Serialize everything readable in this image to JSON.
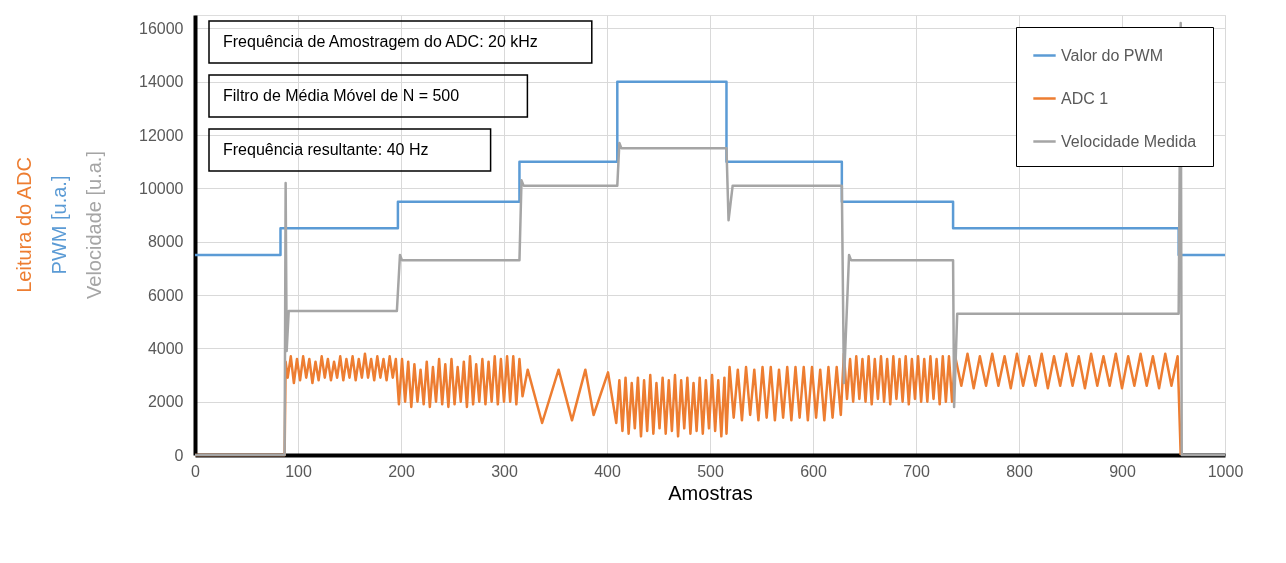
{
  "chart_data": {
    "type": "line",
    "xlabel": "Amostras",
    "ylabel": [
      "Leitura do ADC",
      "PWM [u.a.]",
      "Velocidade [u.a.]"
    ],
    "annotations": [
      "Frequência de Amostragem do ADC: 20 kHz",
      "Filtro de Média Móvel de N = 500",
      "Frequência resultante: 40 Hz"
    ],
    "xlim": [
      0,
      1000
    ],
    "xticks": [
      0,
      100,
      200,
      300,
      400,
      500,
      600,
      700,
      800,
      900,
      1000
    ],
    "ylim": [
      0,
      16500
    ],
    "yticks": [
      0,
      2000,
      4000,
      6000,
      8000,
      10000,
      12000,
      14000,
      16000
    ],
    "grid": true,
    "legend": "top right",
    "line_style": "solid",
    "marker": "none",
    "series": [
      {
        "name": "Valor do PWM",
        "color": "#5b9bd5",
        "x": [
          0,
          83,
          83,
          197,
          197,
          315,
          315,
          410,
          410,
          516,
          516,
          628,
          628,
          736,
          736,
          955,
          955,
          1000
        ],
        "values": [
          7500,
          7500,
          8500,
          8500,
          9500,
          9500,
          11000,
          11000,
          14000,
          14000,
          11000,
          11000,
          9500,
          9500,
          8500,
          8500,
          7500,
          7500
        ]
      },
      {
        "name": "ADC 1",
        "color": "#ed7d31",
        "x": [
          0,
          87,
          88,
          90,
          93,
          96,
          99,
          102,
          105,
          108,
          111,
          114,
          117,
          120,
          123,
          126,
          129,
          132,
          135,
          138,
          141,
          144,
          147,
          150,
          153,
          156,
          159,
          162,
          165,
          168,
          171,
          174,
          177,
          180,
          183,
          186,
          189,
          192,
          195,
          198,
          201,
          204,
          207,
          210,
          213,
          216,
          219,
          222,
          225,
          228,
          231,
          234,
          237,
          240,
          243,
          246,
          249,
          252,
          255,
          258,
          261,
          264,
          267,
          270,
          273,
          276,
          279,
          282,
          285,
          288,
          291,
          294,
          297,
          300,
          303,
          306,
          309,
          312,
          315,
          318,
          323,
          337,
          353,
          366,
          379,
          387,
          401,
          409,
          412,
          415,
          418,
          421,
          424,
          427,
          430,
          433,
          436,
          439,
          442,
          445,
          448,
          451,
          454,
          457,
          460,
          463,
          466,
          469,
          472,
          475,
          478,
          481,
          484,
          487,
          490,
          493,
          496,
          499,
          502,
          505,
          508,
          511,
          514,
          516,
          519,
          523,
          527,
          531,
          535,
          539,
          543,
          547,
          551,
          555,
          559,
          563,
          567,
          571,
          575,
          579,
          583,
          587,
          591,
          595,
          599,
          603,
          607,
          611,
          615,
          619,
          623,
          627,
          630,
          633,
          636,
          639,
          642,
          645,
          648,
          651,
          654,
          657,
          660,
          663,
          666,
          669,
          672,
          675,
          678,
          681,
          684,
          687,
          690,
          693,
          696,
          699,
          702,
          705,
          708,
          711,
          714,
          717,
          720,
          723,
          726,
          729,
          732,
          735,
          738,
          744,
          750,
          756,
          762,
          768,
          774,
          780,
          786,
          792,
          798,
          804,
          810,
          816,
          822,
          828,
          834,
          840,
          846,
          852,
          858,
          864,
          870,
          876,
          882,
          888,
          894,
          900,
          906,
          912,
          918,
          924,
          930,
          936,
          942,
          948,
          954,
          957
        ],
        "values": [
          0,
          0,
          3500,
          2900,
          3700,
          2700,
          3600,
          2800,
          3700,
          2900,
          3600,
          2700,
          3500,
          2800,
          3700,
          2900,
          3600,
          2800,
          3500,
          2900,
          3700,
          2800,
          3600,
          2900,
          3700,
          2800,
          3600,
          2900,
          3800,
          2900,
          3600,
          2800,
          3700,
          2900,
          3600,
          2800,
          3700,
          2900,
          3600,
          1900,
          3600,
          2000,
          3500,
          1800,
          3400,
          2000,
          3200,
          1900,
          3500,
          1800,
          3300,
          2000,
          3600,
          1900,
          3400,
          1800,
          3600,
          1900,
          3300,
          2000,
          3500,
          1800,
          3700,
          1900,
          3400,
          2000,
          3600,
          1900,
          3500,
          2000,
          3700,
          1900,
          3600,
          2000,
          3700,
          2000,
          3700,
          1900,
          3600,
          2200,
          3200,
          1200,
          3200,
          1300,
          3200,
          1500,
          3100,
          1200,
          2800,
          900,
          2900,
          800,
          2700,
          1000,
          2900,
          700,
          2800,
          900,
          3000,
          800,
          2700,
          1000,
          2900,
          800,
          2800,
          900,
          3000,
          700,
          2800,
          1000,
          2900,
          800,
          2700,
          900,
          2900,
          800,
          2800,
          1000,
          3000,
          900,
          2800,
          700,
          2900,
          800,
          3300,
          1400,
          3200,
          1300,
          3300,
          1500,
          3200,
          1300,
          3300,
          1400,
          3300,
          1300,
          3200,
          1400,
          3300,
          1300,
          3300,
          1400,
          3300,
          1300,
          3300,
          1400,
          3200,
          1300,
          3300,
          1400,
          3300,
          1500,
          3800,
          2100,
          3600,
          2000,
          3700,
          2100,
          3600,
          2000,
          3700,
          1900,
          3600,
          2100,
          3700,
          2000,
          3600,
          1900,
          3700,
          2100,
          3600,
          2000,
          3700,
          1900,
          3600,
          2100,
          3700,
          2000,
          3600,
          2000,
          3700,
          2100,
          3600,
          1900,
          3700,
          2000,
          3700,
          2000,
          3700,
          2600,
          3800,
          2500,
          3700,
          2600,
          3800,
          2600,
          3700,
          2500,
          3800,
          2600,
          3700,
          2600,
          3800,
          2500,
          3700,
          2600,
          3800,
          2600,
          3700,
          2500,
          3800,
          2600,
          3700,
          2600,
          3800,
          2500,
          3700,
          2600,
          3800,
          2600,
          3700,
          2500,
          3800,
          2600,
          3700,
          0
        ]
      },
      {
        "name": "Velocidade Medida",
        "color": "#a5a5a5",
        "x": [
          0,
          87,
          88,
          89,
          91,
          196,
          199,
          201,
          315,
          317,
          319,
          410,
          412,
          414,
          516,
          518,
          522,
          628,
          630,
          635,
          637,
          736,
          737,
          740,
          955,
          957,
          958,
          1000
        ],
        "values": [
          0,
          0,
          10200,
          3900,
          5400,
          5400,
          7500,
          7300,
          7300,
          10300,
          10100,
          10100,
          11700,
          11500,
          11500,
          8800,
          10100,
          10100,
          2700,
          7500,
          7300,
          7300,
          1800,
          5300,
          5300,
          16200,
          0,
          0
        ]
      }
    ]
  }
}
